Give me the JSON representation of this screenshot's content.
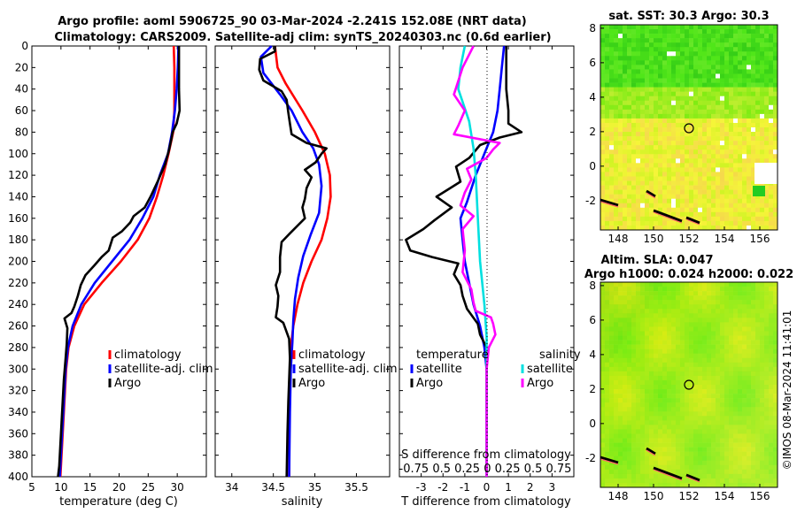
{
  "header": {
    "title_line1": "Argo profile: aoml 5906725_90 03-Mar-2024 -2.241S 152.08E (NRT data)",
    "title_line2": "Climatology: CARS2009. Satellite-adj clim: synTS_20240303.nc (0.6d earlier)"
  },
  "sst_map": {
    "title": "sat. SST: 30.3 Argo: 30.3",
    "xticks": [
      "148",
      "150",
      "152",
      "154",
      "156"
    ],
    "yticks": [
      "8",
      "6",
      "4",
      "2",
      "0",
      "-2"
    ]
  },
  "sla_map": {
    "title_line1": "Altim. SLA: 0.047",
    "title_line2": "Argo h1000: 0.024 h2000: 0.022",
    "xticks": [
      "148",
      "150",
      "152",
      "154",
      "156"
    ],
    "yticks": [
      "8",
      "6",
      "4",
      "2",
      "0",
      "-2"
    ]
  },
  "credit": "©IMOS 08-Mar-2024 11:41:01",
  "chart_data": [
    {
      "type": "line",
      "name": "temperature",
      "xlabel": "temperature (deg C)",
      "xlim": [
        5,
        35
      ],
      "ylim": [
        400,
        0
      ],
      "xticks": [
        "5",
        "10",
        "15",
        "20",
        "25",
        "30"
      ],
      "yticks": [
        "0",
        "20",
        "40",
        "60",
        "80",
        "100",
        "120",
        "140",
        "160",
        "180",
        "200",
        "220",
        "240",
        "260",
        "280",
        "300",
        "320",
        "340",
        "360",
        "380",
        "400"
      ],
      "legend": [
        "climatology",
        "satellite-adj. clim",
        "Argo"
      ],
      "colors": {
        "climatology": "#ff0000",
        "satellite": "#0000ff",
        "argo": "#000000"
      },
      "series": [
        {
          "name": "climatology",
          "color": "#ff0000",
          "points": [
            [
              29.4,
              0
            ],
            [
              29.5,
              20
            ],
            [
              29.5,
              40
            ],
            [
              29.5,
              60
            ],
            [
              29.3,
              80
            ],
            [
              28.5,
              100
            ],
            [
              27.6,
              120
            ],
            [
              26.5,
              140
            ],
            [
              25.2,
              160
            ],
            [
              23.2,
              180
            ],
            [
              20.3,
              200
            ],
            [
              17.0,
              220
            ],
            [
              14.0,
              240
            ],
            [
              12.3,
              260
            ],
            [
              11.3,
              280
            ],
            [
              10.9,
              300
            ],
            [
              10.7,
              320
            ],
            [
              10.5,
              340
            ],
            [
              10.3,
              360
            ],
            [
              10.1,
              380
            ],
            [
              9.9,
              400
            ]
          ]
        },
        {
          "name": "satellite-adj. clim",
          "color": "#0000ff",
          "points": [
            [
              30.2,
              0
            ],
            [
              30.1,
              20
            ],
            [
              29.9,
              40
            ],
            [
              29.6,
              60
            ],
            [
              29.1,
              80
            ],
            [
              28.4,
              100
            ],
            [
              27.0,
              120
            ],
            [
              25.9,
              140
            ],
            [
              24.0,
              160
            ],
            [
              21.8,
              180
            ],
            [
              18.8,
              200
            ],
            [
              15.8,
              220
            ],
            [
              13.5,
              240
            ],
            [
              12.0,
              260
            ],
            [
              11.2,
              280
            ],
            [
              10.8,
              300
            ],
            [
              10.6,
              320
            ],
            [
              10.4,
              340
            ],
            [
              10.2,
              360
            ],
            [
              10.0,
              380
            ],
            [
              9.8,
              400
            ]
          ]
        },
        {
          "name": "Argo",
          "color": "#000000",
          "points": [
            [
              30.3,
              0
            ],
            [
              30.3,
              40
            ],
            [
              30.4,
              60
            ],
            [
              29.9,
              72
            ],
            [
              29.2,
              80
            ],
            [
              29.0,
              86
            ],
            [
              28.6,
              96
            ],
            [
              27.9,
              110
            ],
            [
              26.7,
              125
            ],
            [
              25.4,
              140
            ],
            [
              24.4,
              150
            ],
            [
              22.5,
              158
            ],
            [
              21.9,
              164
            ],
            [
              20.5,
              172
            ],
            [
              18.9,
              178
            ],
            [
              18.2,
              190
            ],
            [
              17.0,
              196
            ],
            [
              15.7,
              204
            ],
            [
              14.2,
              213
            ],
            [
              13.4,
              222
            ],
            [
              12.9,
              232
            ],
            [
              12.3,
              242
            ],
            [
              11.8,
              248
            ],
            [
              10.6,
              253
            ],
            [
              11.1,
              262
            ],
            [
              11.0,
              276
            ],
            [
              10.8,
              290
            ],
            [
              10.5,
              310
            ],
            [
              10.3,
              330
            ],
            [
              10.1,
              350
            ],
            [
              9.9,
              370
            ],
            [
              9.7,
              390
            ],
            [
              9.5,
              400
            ]
          ]
        }
      ]
    },
    {
      "type": "line",
      "name": "salinity",
      "xlabel": "salinity",
      "xlim": [
        33.8,
        35.9
      ],
      "ylim": [
        400,
        0
      ],
      "xticks": [
        "34",
        "34.5",
        "35",
        "35.5"
      ],
      "legend": [
        "climatology",
        "satellite-adj. clim",
        "Argo"
      ],
      "series": [
        {
          "name": "climatology",
          "color": "#ff0000",
          "points": [
            [
              34.52,
              0
            ],
            [
              34.55,
              20
            ],
            [
              34.65,
              35
            ],
            [
              34.85,
              60
            ],
            [
              35.0,
              80
            ],
            [
              35.12,
              100
            ],
            [
              35.18,
              120
            ],
            [
              35.19,
              140
            ],
            [
              35.15,
              160
            ],
            [
              35.08,
              180
            ],
            [
              34.96,
              200
            ],
            [
              34.86,
              220
            ],
            [
              34.79,
              240
            ],
            [
              34.74,
              260
            ],
            [
              34.71,
              280
            ],
            [
              34.7,
              300
            ],
            [
              34.69,
              330
            ],
            [
              34.69,
              360
            ],
            [
              34.69,
              400
            ]
          ]
        },
        {
          "name": "satellite-adj. clim",
          "color": "#0000ff",
          "points": [
            [
              34.48,
              0
            ],
            [
              34.35,
              10
            ],
            [
              34.38,
              25
            ],
            [
              34.58,
              45
            ],
            [
              34.72,
              60
            ],
            [
              34.85,
              80
            ],
            [
              34.98,
              95
            ],
            [
              35.05,
              110
            ],
            [
              35.08,
              130
            ],
            [
              35.05,
              155
            ],
            [
              34.95,
              175
            ],
            [
              34.86,
              195
            ],
            [
              34.8,
              215
            ],
            [
              34.76,
              235
            ],
            [
              34.74,
              255
            ],
            [
              34.73,
              275
            ],
            [
              34.71,
              300
            ],
            [
              34.7,
              340
            ],
            [
              34.69,
              400
            ]
          ]
        },
        {
          "name": "Argo",
          "color": "#000000",
          "points": [
            [
              34.52,
              0
            ],
            [
              34.52,
              5
            ],
            [
              34.34,
              12
            ],
            [
              34.33,
              22
            ],
            [
              34.38,
              32
            ],
            [
              34.6,
              42
            ],
            [
              34.66,
              50
            ],
            [
              34.68,
              62
            ],
            [
              34.7,
              72
            ],
            [
              34.72,
              82
            ],
            [
              34.9,
              90
            ],
            [
              35.14,
              95
            ],
            [
              35.08,
              100
            ],
            [
              35.01,
              108
            ],
            [
              34.88,
              115
            ],
            [
              34.96,
              122
            ],
            [
              34.9,
              132
            ],
            [
              34.88,
              142
            ],
            [
              34.85,
              150
            ],
            [
              34.88,
              160
            ],
            [
              34.7,
              174
            ],
            [
              34.6,
              182
            ],
            [
              34.58,
              196
            ],
            [
              34.58,
              210
            ],
            [
              34.53,
              222
            ],
            [
              34.56,
              232
            ],
            [
              34.55,
              242
            ],
            [
              34.53,
              252
            ],
            [
              34.62,
              257
            ],
            [
              34.69,
              272
            ],
            [
              34.7,
              290
            ],
            [
              34.68,
              330
            ],
            [
              34.67,
              360
            ],
            [
              34.66,
              400
            ]
          ]
        }
      ]
    },
    {
      "type": "line",
      "name": "difference",
      "xlabel": "T difference from climatology",
      "xlabel_top": "S difference from climatology",
      "xlim": [
        -4,
        4
      ],
      "ylim": [
        400,
        0
      ],
      "xticks": [
        "-3",
        "-2",
        "-1",
        "0",
        "1",
        "2",
        "3"
      ],
      "top_ticks_label": "-0.75 0.5 0.25   0   0.25 0.5 0.75",
      "legend_headers": [
        "temperature",
        "salinity"
      ],
      "legend": [
        "satellite",
        "Argo",
        "satellite",
        "Argo"
      ],
      "series": [
        {
          "name": "temperature satellite",
          "color": "#0000ff",
          "points": [
            [
              0.8,
              0
            ],
            [
              0.7,
              20
            ],
            [
              0.6,
              40
            ],
            [
              0.5,
              60
            ],
            [
              0.3,
              80
            ],
            [
              -0.1,
              100
            ],
            [
              -0.5,
              120
            ],
            [
              -0.9,
              145
            ],
            [
              -1.2,
              160
            ],
            [
              -1.1,
              180
            ],
            [
              -1.0,
              200
            ],
            [
              -0.8,
              220
            ],
            [
              -0.6,
              240
            ],
            [
              -0.3,
              260
            ],
            [
              -0.1,
              280
            ],
            [
              0.0,
              300
            ],
            [
              0.0,
              400
            ]
          ]
        },
        {
          "name": "temperature Argo",
          "color": "#000000",
          "points": [
            [
              0.9,
              0
            ],
            [
              0.9,
              40
            ],
            [
              1.0,
              60
            ],
            [
              1.0,
              72
            ],
            [
              1.6,
              80
            ],
            [
              0.6,
              85
            ],
            [
              -0.3,
              92
            ],
            [
              -0.8,
              104
            ],
            [
              -1.4,
              112
            ],
            [
              -1.2,
              126
            ],
            [
              -2.3,
              140
            ],
            [
              -1.6,
              150
            ],
            [
              -2.4,
              162
            ],
            [
              -2.9,
              170
            ],
            [
              -3.7,
              180
            ],
            [
              -3.5,
              190
            ],
            [
              -2.5,
              196
            ],
            [
              -1.3,
              202
            ],
            [
              -1.5,
              212
            ],
            [
              -1.2,
              222
            ],
            [
              -1.1,
              232
            ],
            [
              -0.9,
              244
            ],
            [
              -0.4,
              258
            ],
            [
              -0.3,
              268
            ],
            [
              0.0,
              280
            ],
            [
              0.0,
              400
            ]
          ]
        },
        {
          "name": "salinity satellite",
          "color": "#00e0e0",
          "points": [
            [
              -1.0,
              0
            ],
            [
              -1.2,
              20
            ],
            [
              -1.3,
              40
            ],
            [
              -0.8,
              70
            ],
            [
              -0.6,
              95
            ],
            [
              -0.5,
              120
            ],
            [
              -0.4,
              160
            ],
            [
              -0.3,
              200
            ],
            [
              -0.1,
              240
            ],
            [
              0.0,
              270
            ],
            [
              0.0,
              400
            ]
          ]
        },
        {
          "name": "salinity Argo",
          "color": "#ff00ff",
          "points": [
            [
              -0.6,
              0
            ],
            [
              -1.1,
              20
            ],
            [
              -1.5,
              45
            ],
            [
              -1.0,
              60
            ],
            [
              -1.3,
              74
            ],
            [
              -1.5,
              82
            ],
            [
              0.6,
              90
            ],
            [
              0.3,
              96
            ],
            [
              0.0,
              104
            ],
            [
              -0.9,
              114
            ],
            [
              -0.7,
              124
            ],
            [
              -1.0,
              136
            ],
            [
              -1.2,
              148
            ],
            [
              -0.6,
              158
            ],
            [
              -1.1,
              170
            ],
            [
              -1.0,
              190
            ],
            [
              -1.1,
              210
            ],
            [
              -0.7,
              226
            ],
            [
              -0.6,
              238
            ],
            [
              -0.5,
              246
            ],
            [
              0.2,
              252
            ],
            [
              0.3,
              258
            ],
            [
              0.4,
              268
            ],
            [
              0.1,
              280
            ],
            [
              0.0,
              300
            ],
            [
              0.0,
              400
            ]
          ]
        }
      ]
    }
  ]
}
